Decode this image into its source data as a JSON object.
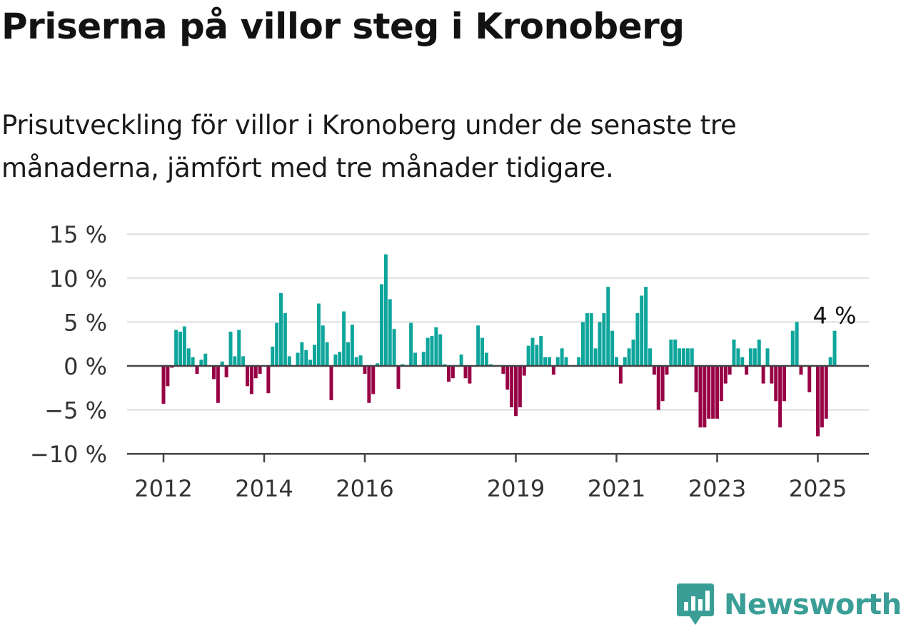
{
  "title": "Priserna på villor steg i Kronoberg",
  "subtitle": "Prisutveckling för villor i Kronoberg under de senaste tre månaderna, jämfört med tre månader tidigare.",
  "brand": {
    "name": "Newsworthy",
    "icon": "newsworthy-logo-icon"
  },
  "colors": {
    "positive": "#0ea59b",
    "negative": "#970045",
    "grid": "#dddddd",
    "axis": "#444444",
    "text": "#333333"
  },
  "chart_data": {
    "type": "bar",
    "y_unit": "%",
    "ylim": [
      -10,
      15
    ],
    "y_ticks": [
      {
        "value": 15,
        "label": "15 %"
      },
      {
        "value": 10,
        "label": "10 %"
      },
      {
        "value": 5,
        "label": "5 %"
      },
      {
        "value": 0,
        "label": "0 %"
      },
      {
        "value": -5,
        "label": "−5 %"
      },
      {
        "value": -10,
        "label": "−10 %"
      }
    ],
    "x_ticks": [
      {
        "date": "2012-01",
        "label": "2012"
      },
      {
        "date": "2014-01",
        "label": "2014"
      },
      {
        "date": "2016-01",
        "label": "2016"
      },
      {
        "date": "2019-01",
        "label": "2019"
      },
      {
        "date": "2021-01",
        "label": "2021"
      },
      {
        "date": "2023-01",
        "label": "2023"
      },
      {
        "date": "2025-01",
        "label": "2025"
      }
    ],
    "grid": true,
    "last_value_label": "4 %",
    "start_month": "2012-01",
    "values": [
      -4.3,
      -2.3,
      -0.2,
      4.1,
      3.9,
      4.5,
      2.0,
      1.0,
      -0.9,
      0.7,
      1.4,
      0.0,
      -1.5,
      -4.2,
      0.5,
      -1.3,
      3.9,
      1.1,
      4.1,
      1.1,
      -2.3,
      -3.2,
      -1.4,
      -0.9,
      0.0,
      -3.1,
      2.2,
      4.9,
      8.3,
      6.0,
      1.1,
      0.0,
      1.5,
      2.7,
      1.8,
      0.7,
      2.4,
      7.1,
      4.6,
      2.7,
      -3.9,
      1.3,
      1.6,
      6.2,
      2.7,
      4.7,
      1.0,
      1.2,
      -0.9,
      -4.2,
      -3.2,
      0.3,
      9.3,
      12.7,
      7.6,
      4.2,
      -2.6,
      0.2,
      0.0,
      4.9,
      1.5,
      0.0,
      1.6,
      3.2,
      3.4,
      4.4,
      3.6,
      0.2,
      -1.8,
      -1.4,
      0.1,
      1.3,
      -1.4,
      -2.0,
      0.0,
      4.6,
      3.2,
      1.5,
      0.2,
      0.0,
      0.0,
      -0.9,
      -2.7,
      -4.7,
      -5.7,
      -4.7,
      -1.1,
      2.3,
      3.2,
      2.4,
      3.4,
      1.0,
      1.0,
      -1.0,
      1.0,
      2.0,
      1.0,
      0.0,
      0.0,
      1.0,
      5.0,
      6.0,
      6.0,
      2.0,
      5.0,
      6.0,
      9.0,
      4.0,
      1.0,
      -2.0,
      1.0,
      2.0,
      3.0,
      6.0,
      8.0,
      9.0,
      2.0,
      -1.0,
      -5.0,
      -4.0,
      -1.0,
      3.0,
      3.0,
      2.0,
      2.0,
      2.0,
      2.0,
      -3.0,
      -7.0,
      -7.0,
      -6.0,
      -6.0,
      -6.0,
      -4.0,
      -2.0,
      -1.0,
      3.0,
      2.0,
      1.0,
      -1.0,
      2.0,
      2.0,
      3.0,
      -2.0,
      2.0,
      -2.0,
      -4.0,
      -7.0,
      -4.0,
      0.0,
      4.0,
      5.0,
      -1.0,
      0.0,
      -3.0,
      0.0,
      -8.0,
      -7.0,
      -6.0,
      1.0,
      4.0
    ]
  }
}
